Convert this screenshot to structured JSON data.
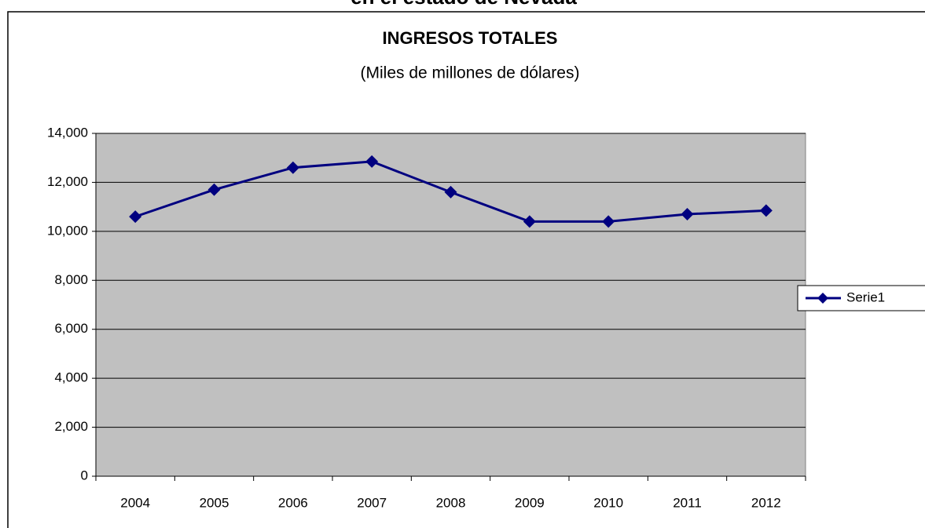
{
  "chart_data": {
    "type": "line",
    "supertitle": "en el estado de Nevada",
    "title": "INGRESOS TOTALES",
    "subtitle": "(Miles de millones de dólares)",
    "categories": [
      "2004",
      "2005",
      "2006",
      "2007",
      "2008",
      "2009",
      "2010",
      "2011",
      "2012"
    ],
    "series": [
      {
        "name": "Serie1",
        "color": "#000080",
        "values": [
          10600,
          11700,
          12600,
          12850,
          11600,
          10400,
          10400,
          10700,
          10850
        ]
      }
    ],
    "ylim": [
      0,
      14000
    ],
    "yticks": [
      0,
      {
        "value": 2000,
        "label": "2,000"
      },
      {
        "value": 4000,
        "label": "4,000"
      },
      {
        "value": 6000,
        "label": "6,000"
      },
      {
        "value": 8000,
        "label": "8,000"
      },
      {
        "value": 10000,
        "label": "10,000"
      },
      {
        "value": 12000,
        "label": "12,000"
      },
      {
        "value": 14000,
        "label": "14,000"
      }
    ],
    "grid": true,
    "plot_background": "#c0c0c0",
    "legend": "right"
  }
}
